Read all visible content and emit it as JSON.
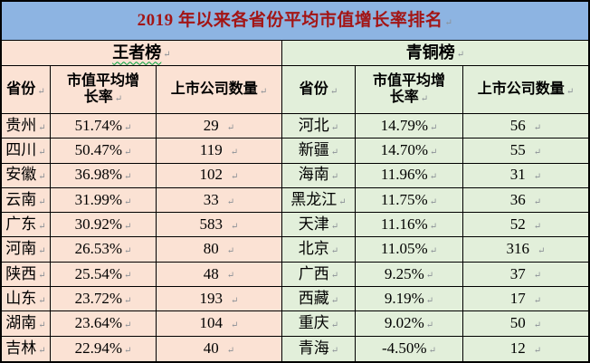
{
  "title": {
    "text": "2019 年以来各省份平均市值增长率排名"
  },
  "marks": {
    "paragraph": "↵"
  },
  "colors": {
    "title_bg": "#8DB4E2",
    "title_text": "#A31515",
    "left_bg": "#FBE2D4",
    "right_bg": "#E2EFDA",
    "border": "#000000",
    "squiggle": "#00A43C"
  },
  "left_table": {
    "band": "王者榜",
    "headers": {
      "province": "省份",
      "growth_line1": "市值平均增",
      "growth_line2": "长率",
      "count": "上市公司数量"
    },
    "rows": [
      {
        "province": "贵州",
        "growth": "51.74%",
        "count": "29"
      },
      {
        "province": "四川",
        "growth": "50.47%",
        "count": "119"
      },
      {
        "province": "安徽",
        "growth": "36.98%",
        "count": "102"
      },
      {
        "province": "云南",
        "growth": "31.99%",
        "count": "33"
      },
      {
        "province": "广东",
        "growth": "30.92%",
        "count": "583"
      },
      {
        "province": "河南",
        "growth": "26.53%",
        "count": "80"
      },
      {
        "province": "陕西",
        "growth": "25.54%",
        "count": "48"
      },
      {
        "province": "山东",
        "growth": "23.72%",
        "count": "193"
      },
      {
        "province": "湖南",
        "growth": "23.64%",
        "count": "104"
      },
      {
        "province": "吉林",
        "growth": "22.94%",
        "count": "40"
      }
    ]
  },
  "right_table": {
    "band": "青铜榜",
    "headers": {
      "province": "省份",
      "growth_line1": "市值平均增",
      "growth_line2": "长率",
      "count": "上市公司数量"
    },
    "rows": [
      {
        "province": "河北",
        "growth": "14.79%",
        "count": "56"
      },
      {
        "province": "新疆",
        "growth": "14.70%",
        "count": "55"
      },
      {
        "province": "海南",
        "growth": "11.96%",
        "count": "31"
      },
      {
        "province": "黑龙江",
        "growth": "11.75%",
        "count": "36"
      },
      {
        "province": "天津",
        "growth": "11.16%",
        "count": "52"
      },
      {
        "province": "北京",
        "growth": "11.05%",
        "count": "316"
      },
      {
        "province": "广西",
        "growth": "9.25%",
        "count": "37"
      },
      {
        "province": "西藏",
        "growth": "9.19%",
        "count": "17"
      },
      {
        "province": "重庆",
        "growth": "9.02%",
        "count": "50"
      },
      {
        "province": "青海",
        "growth": "-4.50%",
        "count": "12"
      }
    ]
  }
}
